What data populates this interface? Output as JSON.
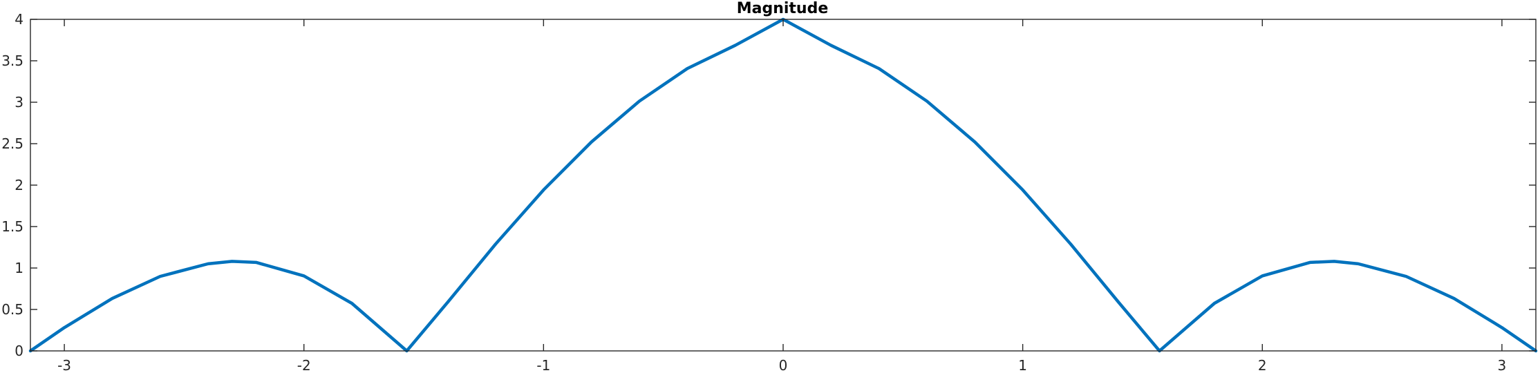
{
  "chart_data": {
    "type": "line",
    "title": "Magnitude",
    "xlabel": "",
    "ylabel": "",
    "xlim": [
      -3.1416,
      3.1416
    ],
    "ylim": [
      0,
      4
    ],
    "grid": false,
    "x_ticks": [
      -3,
      -2,
      -1,
      0,
      1,
      2,
      3
    ],
    "x_tick_labels": [
      "-3",
      "-2",
      "-1",
      "0",
      "1",
      "2",
      "3"
    ],
    "y_ticks": [
      0,
      0.5,
      1,
      1.5,
      2,
      2.5,
      3,
      3.5,
      4
    ],
    "y_tick_labels": [
      "0",
      "0.5",
      "1",
      "1.5",
      "2",
      "2.5",
      "3",
      "3.5",
      "4"
    ],
    "series": [
      {
        "color": "#0072bd",
        "x": [
          -3.1416,
          -3.0,
          -2.8,
          -2.6,
          -2.4,
          -2.3,
          -2.2,
          -2.0,
          -1.8,
          -1.5708,
          -1.4,
          -1.2,
          -1.0,
          -0.8,
          -0.6,
          -0.4,
          -0.2,
          0.0,
          0.2,
          0.4,
          0.6,
          0.8,
          1.0,
          1.2,
          1.4,
          1.5708,
          1.8,
          2.0,
          2.2,
          2.3,
          2.4,
          2.6,
          2.8,
          3.0,
          3.1416
        ],
        "y": [
          0.0,
          0.281,
          0.633,
          0.899,
          1.051,
          1.08,
          1.068,
          0.905,
          0.574,
          0.0,
          0.587,
          1.289,
          1.942,
          2.521,
          3.013,
          3.406,
          3.686,
          4.0,
          3.686,
          3.406,
          3.013,
          2.521,
          1.942,
          1.289,
          0.587,
          0.0,
          0.574,
          0.905,
          1.068,
          1.08,
          1.051,
          0.899,
          0.633,
          0.281,
          0.0
        ]
      }
    ]
  }
}
